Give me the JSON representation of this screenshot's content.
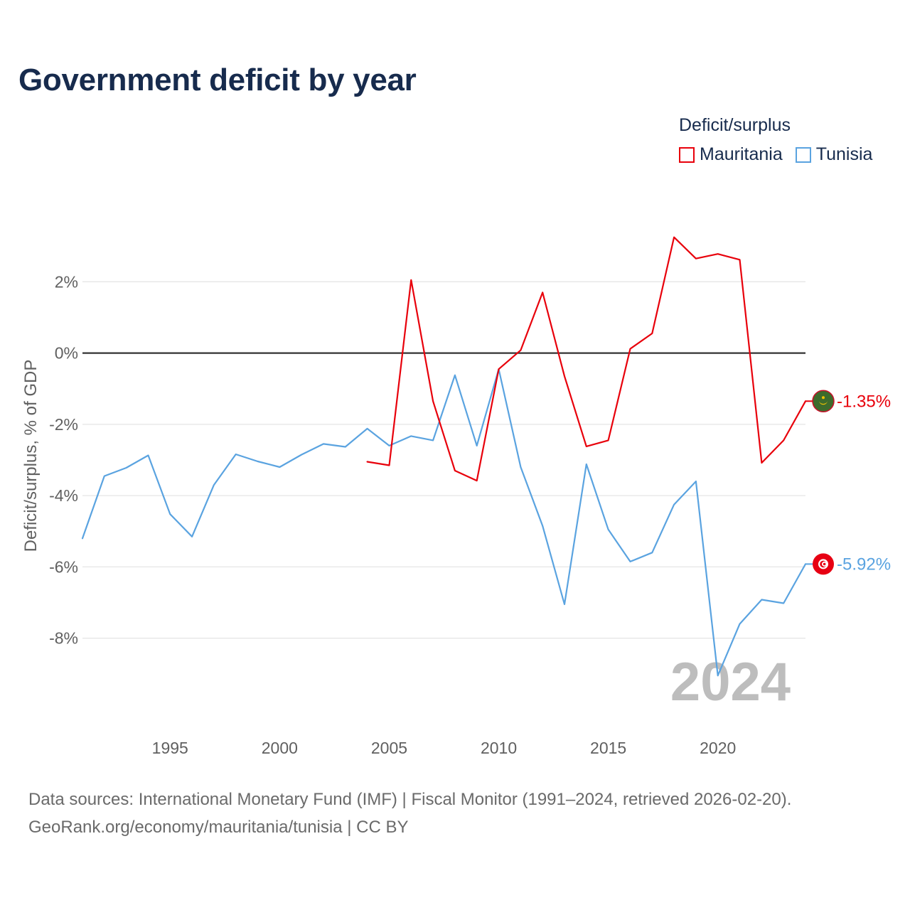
{
  "chart_data": {
    "type": "line",
    "title": "Government deficit by year",
    "xlabel": "",
    "ylabel": "Deficit/surplus, % of GDP",
    "xlim": [
      1991,
      2024
    ],
    "ylim": [
      -10.5,
      4.5
    ],
    "x_ticks": [
      {
        "value": 1995,
        "label": "1995"
      },
      {
        "value": 2000,
        "label": "2000"
      },
      {
        "value": 2005,
        "label": "2005"
      },
      {
        "value": 2010,
        "label": "2010"
      },
      {
        "value": 2015,
        "label": "2015"
      },
      {
        "value": 2020,
        "label": "2020"
      }
    ],
    "y_ticks": [
      {
        "value": 2,
        "label": "2%"
      },
      {
        "value": 0,
        "label": "0%"
      },
      {
        "value": -2,
        "label": "-2%"
      },
      {
        "value": -4,
        "label": "-4%"
      },
      {
        "value": -6,
        "label": "-6%"
      },
      {
        "value": -8,
        "label": "-8%"
      }
    ],
    "grid": true,
    "legend_title": "Deficit/surplus",
    "legend_position": "top-right",
    "year_watermark": "2024",
    "series": [
      {
        "name": "Mauritania",
        "color": "#e8000b",
        "end_label": "-1.35%",
        "flag_icon": "mauritania-flag-icon",
        "points": [
          [
            2004,
            -3.05
          ],
          [
            2005,
            -3.15
          ],
          [
            2006,
            2.05
          ],
          [
            2007,
            -1.35
          ],
          [
            2008,
            -3.3
          ],
          [
            2009,
            -3.58
          ],
          [
            2010,
            -0.45
          ],
          [
            2011,
            0.08
          ],
          [
            2012,
            1.7
          ],
          [
            2013,
            -0.65
          ],
          [
            2014,
            -2.62
          ],
          [
            2015,
            -2.45
          ],
          [
            2016,
            0.12
          ],
          [
            2017,
            0.55
          ],
          [
            2018,
            3.25
          ],
          [
            2019,
            2.65
          ],
          [
            2020,
            2.78
          ],
          [
            2021,
            2.62
          ],
          [
            2022,
            -3.08
          ],
          [
            2023,
            -2.45
          ],
          [
            2024,
            -1.35
          ]
        ]
      },
      {
        "name": "Tunisia",
        "color": "#5aa3e0",
        "end_label": "-5.92%",
        "flag_icon": "tunisia-flag-icon",
        "points": [
          [
            1991,
            -5.2
          ],
          [
            1992,
            -3.45
          ],
          [
            1993,
            -3.22
          ],
          [
            1994,
            -2.87
          ],
          [
            1995,
            -4.52
          ],
          [
            1996,
            -5.15
          ],
          [
            1997,
            -3.7
          ],
          [
            1998,
            -2.84
          ],
          [
            1999,
            -3.04
          ],
          [
            2000,
            -3.2
          ],
          [
            2001,
            -2.85
          ],
          [
            2002,
            -2.55
          ],
          [
            2003,
            -2.63
          ],
          [
            2004,
            -2.12
          ],
          [
            2005,
            -2.6
          ],
          [
            2006,
            -2.33
          ],
          [
            2007,
            -2.45
          ],
          [
            2008,
            -0.62
          ],
          [
            2009,
            -2.6
          ],
          [
            2010,
            -0.45
          ],
          [
            2011,
            -3.2
          ],
          [
            2012,
            -4.85
          ],
          [
            2013,
            -7.05
          ],
          [
            2014,
            -3.12
          ],
          [
            2015,
            -4.95
          ],
          [
            2016,
            -5.85
          ],
          [
            2017,
            -5.6
          ],
          [
            2018,
            -4.25
          ],
          [
            2019,
            -3.6
          ],
          [
            2020,
            -9.05
          ],
          [
            2021,
            -7.6
          ],
          [
            2022,
            -6.92
          ],
          [
            2023,
            -7.02
          ],
          [
            2024,
            -5.92
          ]
        ]
      }
    ]
  },
  "source": {
    "line1": "Data sources: International Monetary Fund (IMF) | Fiscal Monitor (1991–2024, retrieved 2026-02-20).",
    "line2": "GeoRank.org/economy/mauritania/tunisia | CC BY"
  }
}
